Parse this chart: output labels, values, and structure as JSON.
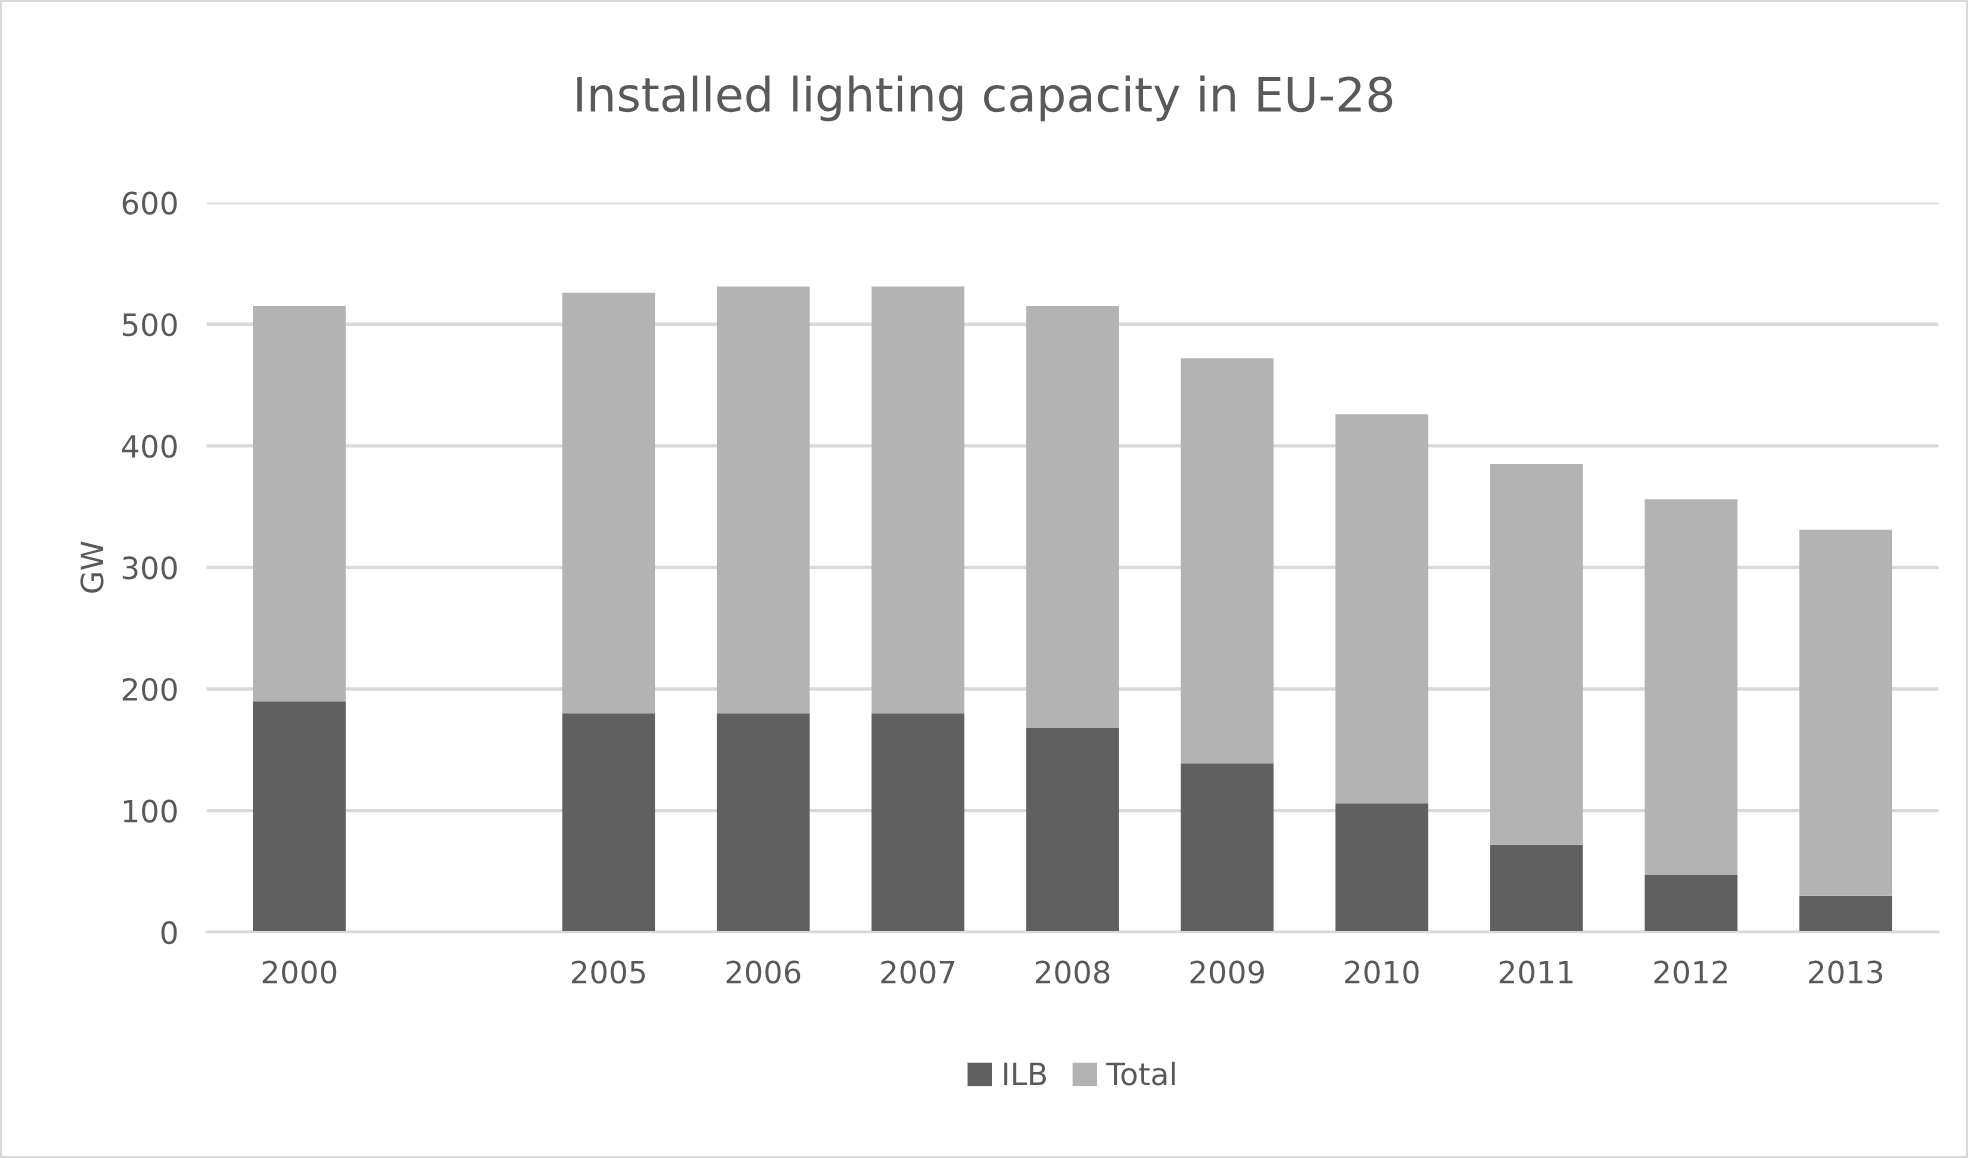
{
  "chart_data": {
    "type": "bar",
    "title": "Installed lighting capacity in EU-28",
    "ylabel": "GW",
    "categories": [
      "2000",
      null,
      "2005",
      "2006",
      "2007",
      "2008",
      "2009",
      "2010",
      "2011",
      "2012",
      "2013"
    ],
    "stacked": true,
    "series": [
      {
        "name": "ILB",
        "color": "#606060",
        "values": [
          190,
          null,
          180,
          180,
          180,
          168,
          139,
          106,
          72,
          47,
          30
        ]
      },
      {
        "name": "Total",
        "color": "#b3b3b3",
        "values": [
          325,
          null,
          346,
          351,
          351,
          347,
          333,
          320,
          313,
          309,
          301
        ]
      }
    ],
    "ylim": [
      0,
      600
    ],
    "yticks": [
      0,
      100,
      200,
      300,
      400,
      500,
      600
    ],
    "grid": "y",
    "legend": "bottom"
  }
}
